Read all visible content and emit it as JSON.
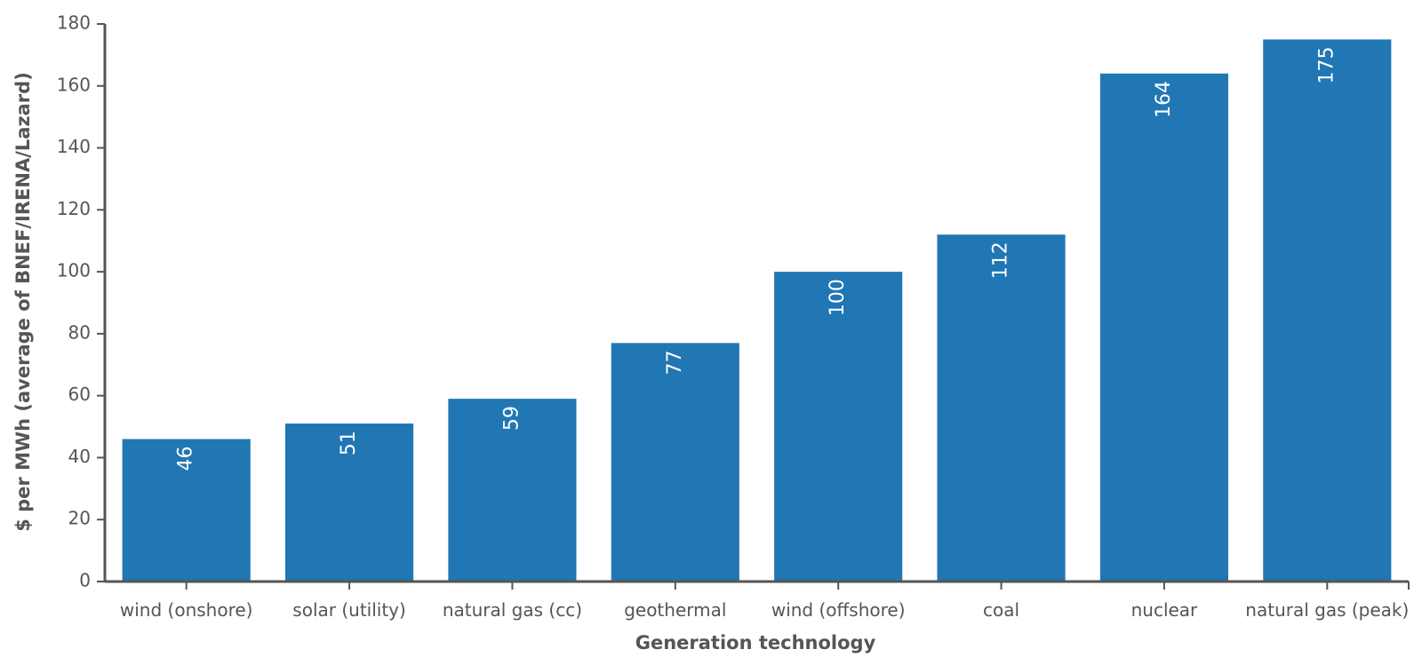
{
  "chart_data": {
    "type": "bar",
    "title": "",
    "xlabel": "Generation technology",
    "ylabel": "$ per MWh (average of BNEF/IRENA/Lazard)",
    "categories": [
      "wind (onshore)",
      "solar (utility)",
      "natural gas (cc)",
      "geothermal",
      "wind (offshore)",
      "coal",
      "nuclear",
      "natural gas (peak)"
    ],
    "values": [
      46,
      51,
      59,
      77,
      100,
      112,
      164,
      175
    ],
    "data_labels": [
      "46",
      "51",
      "59",
      "77",
      "100",
      "112",
      "164",
      "175"
    ],
    "ylim": [
      0,
      180
    ],
    "yticks": [
      0,
      20,
      40,
      60,
      80,
      100,
      120,
      140,
      160,
      180
    ],
    "ytick_labels": [
      "0",
      "20",
      "40",
      "60",
      "80",
      "100",
      "120",
      "140",
      "160",
      "180"
    ],
    "bar_color": "#2176b4",
    "grid": false,
    "legend": "none"
  }
}
